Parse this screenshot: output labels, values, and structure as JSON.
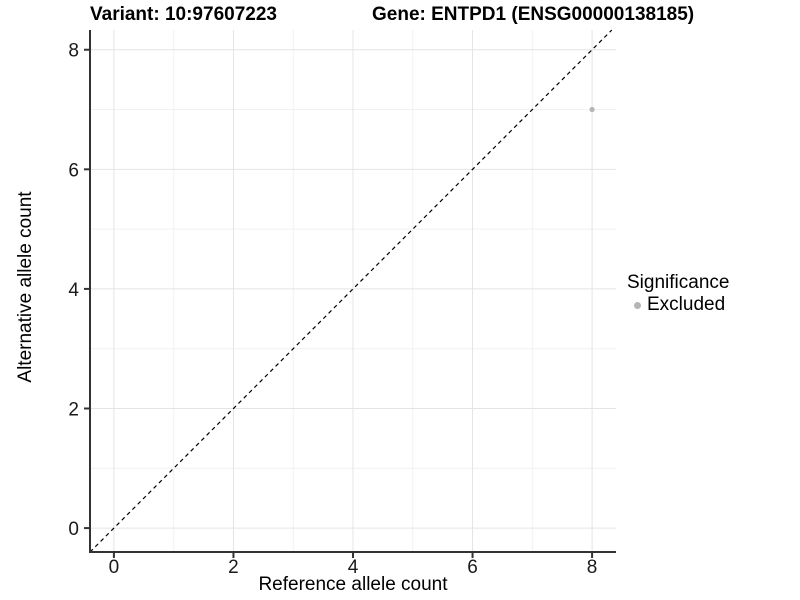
{
  "title": {
    "variant": "Variant: 10:97607223",
    "gene": "Gene: ENTPD1 (ENSG00000138185)"
  },
  "chart_data": {
    "type": "scatter",
    "xlabel": "Reference allele count",
    "ylabel": "Alternative allele count",
    "xlim": [
      -0.4,
      8.4
    ],
    "ylim": [
      -0.4,
      8.33
    ],
    "xticks": [
      0,
      2,
      4,
      6,
      8
    ],
    "yticks": [
      0,
      2,
      4,
      6,
      8
    ],
    "x_minor": [
      1,
      3,
      5,
      7
    ],
    "y_minor": [
      1,
      3,
      5,
      7
    ],
    "grid": "major+minor",
    "identity_line": {
      "style": "dashed",
      "slope": 1,
      "intercept": 0,
      "color": "#000000"
    },
    "series": [
      {
        "name": "Excluded",
        "color": "#b5b5b5",
        "points": [
          {
            "x": 8,
            "y": 7
          }
        ]
      }
    ],
    "colors": {
      "axis": "#333333",
      "grid_major": "#e4e4e4",
      "grid_minor": "#f1f1f1",
      "tick_text": "#1a1a1a"
    },
    "legend_position": "right"
  },
  "legend": {
    "title": "Significance",
    "items": [
      {
        "label": "Excluded",
        "color": "#b5b5b5"
      }
    ]
  }
}
